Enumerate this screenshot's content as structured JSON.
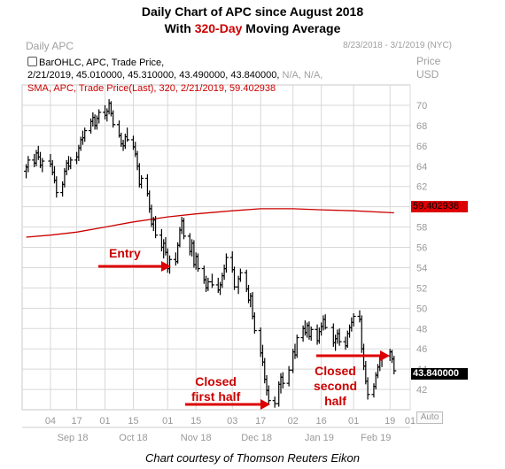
{
  "header": {
    "title": "Daily Chart of APC since August 2018",
    "subtitle_prefix": "With ",
    "subtitle_highlight": "320-Day",
    "subtitle_suffix": " Moving Average",
    "highlight_color": "#cc0000"
  },
  "chart_header": {
    "left": "Daily APC",
    "date_range": "8/23/2018 - 3/1/2019 (NYC)",
    "axis_title_1": "Price",
    "axis_title_2": "USD"
  },
  "info": {
    "line1": "BarOHLC, APC, Trade Price,",
    "line2_main": "2/21/2019, 45.010000, 45.310000, 43.490000, 43.840000, ",
    "line2_muted": "N/A, N/A,",
    "line3": "SMA, APC, Trade Price(Last),  320,  2/21/2019,  59.402938"
  },
  "price_tag": "43.840000",
  "sma_tag": "59.402938",
  "auto_label": "Auto",
  "credit": "Chart courtesy of Thomson Reuters Eikon",
  "annotations": {
    "entry": "Entry",
    "closed_first": [
      "Closed",
      "first half"
    ],
    "closed_second": [
      "Closed",
      "second",
      "half"
    ]
  },
  "colors": {
    "bars": "#000000",
    "sma": "#cc0000",
    "grid": "#d8d8d8",
    "arrow": "#dd0000",
    "tag_bg": "#000000",
    "sma_tag_bg": "#dd0000"
  },
  "chart_data": {
    "type": "bar",
    "title": "Daily Chart of APC since August 2018",
    "subtitle": "With 320-Day Moving Average",
    "ylabel": "Price USD",
    "ylim": [
      40,
      72
    ],
    "y_ticks": [
      42,
      44,
      46,
      48,
      50,
      52,
      54,
      56,
      58,
      60,
      62,
      64,
      66,
      68,
      70
    ],
    "grid": true,
    "x_day_ticks": [
      "04",
      "17",
      "01",
      "15",
      "01",
      "15",
      "03",
      "17",
      "02",
      "16",
      "01",
      "19",
      "01"
    ],
    "x_month_ticks": [
      "Sep 18",
      "Oct 18",
      "Nov 18",
      "Dec 18",
      "Jan 19",
      "Feb 19"
    ],
    "bars_ohlc": [
      {
        "date": "2018-08-23",
        "o": 63.5,
        "h": 64.2,
        "l": 62.8,
        "c": 63.9
      },
      {
        "date": "2018-08-24",
        "o": 63.9,
        "h": 65.0,
        "l": 63.4,
        "c": 64.6
      },
      {
        "date": "2018-08-27",
        "o": 64.6,
        "h": 65.2,
        "l": 63.9,
        "c": 64.3
      },
      {
        "date": "2018-08-28",
        "o": 64.3,
        "h": 65.6,
        "l": 64.0,
        "c": 65.3
      },
      {
        "date": "2018-08-29",
        "o": 65.3,
        "h": 66.0,
        "l": 64.6,
        "c": 64.9
      },
      {
        "date": "2018-08-30",
        "o": 64.9,
        "h": 65.4,
        "l": 63.8,
        "c": 64.1
      },
      {
        "date": "2018-08-31",
        "o": 64.1,
        "h": 64.8,
        "l": 63.4,
        "c": 64.5
      },
      {
        "date": "2018-09-04",
        "o": 64.5,
        "h": 65.2,
        "l": 63.9,
        "c": 64.2
      },
      {
        "date": "2018-09-05",
        "o": 64.2,
        "h": 64.6,
        "l": 63.1,
        "c": 63.4
      },
      {
        "date": "2018-09-06",
        "o": 63.4,
        "h": 64.0,
        "l": 62.3,
        "c": 62.6
      },
      {
        "date": "2018-09-07",
        "o": 62.6,
        "h": 63.0,
        "l": 60.9,
        "c": 61.4
      },
      {
        "date": "2018-09-10",
        "o": 61.4,
        "h": 62.5,
        "l": 61.0,
        "c": 62.2
      },
      {
        "date": "2018-09-11",
        "o": 62.2,
        "h": 63.8,
        "l": 61.9,
        "c": 63.5
      },
      {
        "date": "2018-09-12",
        "o": 63.5,
        "h": 64.6,
        "l": 63.1,
        "c": 64.3
      },
      {
        "date": "2018-09-13",
        "o": 64.3,
        "h": 65.0,
        "l": 63.6,
        "c": 64.0
      },
      {
        "date": "2018-09-14",
        "o": 64.0,
        "h": 64.9,
        "l": 63.7,
        "c": 64.6
      },
      {
        "date": "2018-09-17",
        "o": 64.6,
        "h": 65.4,
        "l": 64.2,
        "c": 64.9
      },
      {
        "date": "2018-09-18",
        "o": 64.9,
        "h": 66.1,
        "l": 64.5,
        "c": 65.8
      },
      {
        "date": "2018-09-19",
        "o": 65.8,
        "h": 66.9,
        "l": 65.5,
        "c": 66.6
      },
      {
        "date": "2018-09-20",
        "o": 66.6,
        "h": 67.5,
        "l": 66.1,
        "c": 66.8
      },
      {
        "date": "2018-09-21",
        "o": 66.8,
        "h": 67.8,
        "l": 66.4,
        "c": 67.5
      },
      {
        "date": "2018-09-24",
        "o": 67.5,
        "h": 68.7,
        "l": 67.2,
        "c": 68.4
      },
      {
        "date": "2018-09-25",
        "o": 68.4,
        "h": 69.3,
        "l": 67.9,
        "c": 68.8
      },
      {
        "date": "2018-09-26",
        "o": 68.8,
        "h": 69.1,
        "l": 67.6,
        "c": 68.0
      },
      {
        "date": "2018-09-27",
        "o": 68.0,
        "h": 69.0,
        "l": 67.6,
        "c": 68.7
      },
      {
        "date": "2018-09-28",
        "o": 68.7,
        "h": 69.6,
        "l": 68.2,
        "c": 69.3
      },
      {
        "date": "2018-10-01",
        "o": 69.3,
        "h": 70.0,
        "l": 68.6,
        "c": 69.0
      },
      {
        "date": "2018-10-02",
        "o": 69.0,
        "h": 69.7,
        "l": 68.4,
        "c": 69.4
      },
      {
        "date": "2018-10-03",
        "o": 69.4,
        "h": 70.6,
        "l": 69.1,
        "c": 70.2
      },
      {
        "date": "2018-10-04",
        "o": 70.2,
        "h": 70.4,
        "l": 68.9,
        "c": 69.2
      },
      {
        "date": "2018-10-05",
        "o": 69.2,
        "h": 69.5,
        "l": 67.8,
        "c": 68.1
      },
      {
        "date": "2018-10-08",
        "o": 68.1,
        "h": 68.5,
        "l": 66.8,
        "c": 67.0
      },
      {
        "date": "2018-10-09",
        "o": 67.0,
        "h": 67.3,
        "l": 65.9,
        "c": 66.2
      },
      {
        "date": "2018-10-10",
        "o": 66.2,
        "h": 66.6,
        "l": 65.5,
        "c": 66.0
      },
      {
        "date": "2018-10-11",
        "o": 66.0,
        "h": 67.2,
        "l": 65.7,
        "c": 66.9
      },
      {
        "date": "2018-10-12",
        "o": 66.9,
        "h": 67.8,
        "l": 66.4,
        "c": 66.6
      },
      {
        "date": "2018-10-15",
        "o": 66.6,
        "h": 67.0,
        "l": 65.6,
        "c": 65.9
      },
      {
        "date": "2018-10-16",
        "o": 65.9,
        "h": 66.4,
        "l": 64.9,
        "c": 65.2
      },
      {
        "date": "2018-10-17",
        "o": 65.2,
        "h": 65.5,
        "l": 63.6,
        "c": 64.0
      },
      {
        "date": "2018-10-18",
        "o": 64.0,
        "h": 64.3,
        "l": 61.9,
        "c": 62.2
      },
      {
        "date": "2018-10-19",
        "o": 62.2,
        "h": 63.1,
        "l": 61.8,
        "c": 62.8
      },
      {
        "date": "2018-10-22",
        "o": 62.8,
        "h": 63.2,
        "l": 61.0,
        "c": 61.3
      },
      {
        "date": "2018-10-23",
        "o": 61.3,
        "h": 61.6,
        "l": 59.4,
        "c": 59.8
      },
      {
        "date": "2018-10-24",
        "o": 59.8,
        "h": 60.2,
        "l": 58.0,
        "c": 58.3
      },
      {
        "date": "2018-10-25",
        "o": 58.3,
        "h": 59.0,
        "l": 57.6,
        "c": 58.7
      },
      {
        "date": "2018-10-26",
        "o": 58.7,
        "h": 59.1,
        "l": 56.9,
        "c": 57.2
      },
      {
        "date": "2018-10-29",
        "o": 57.2,
        "h": 57.8,
        "l": 55.6,
        "c": 56.0
      },
      {
        "date": "2018-10-30",
        "o": 56.0,
        "h": 56.8,
        "l": 54.9,
        "c": 56.4
      },
      {
        "date": "2018-10-31",
        "o": 56.4,
        "h": 57.0,
        "l": 55.2,
        "c": 55.5
      },
      {
        "date": "2018-11-01",
        "o": 55.5,
        "h": 55.9,
        "l": 53.5,
        "c": 53.9
      },
      {
        "date": "2018-11-02",
        "o": 53.9,
        "h": 55.2,
        "l": 53.4,
        "c": 54.8
      },
      {
        "date": "2018-11-05",
        "o": 54.8,
        "h": 55.5,
        "l": 54.2,
        "c": 54.6
      },
      {
        "date": "2018-11-06",
        "o": 54.6,
        "h": 56.5,
        "l": 54.4,
        "c": 56.2
      },
      {
        "date": "2018-11-07",
        "o": 56.2,
        "h": 58.0,
        "l": 56.0,
        "c": 57.7
      },
      {
        "date": "2018-11-08",
        "o": 57.7,
        "h": 59.0,
        "l": 57.3,
        "c": 58.6
      },
      {
        "date": "2018-11-09",
        "o": 58.6,
        "h": 58.9,
        "l": 56.8,
        "c": 57.1
      },
      {
        "date": "2018-11-12",
        "o": 57.1,
        "h": 57.4,
        "l": 55.2,
        "c": 55.6
      },
      {
        "date": "2018-11-13",
        "o": 55.6,
        "h": 56.8,
        "l": 55.1,
        "c": 56.4
      },
      {
        "date": "2018-11-14",
        "o": 56.4,
        "h": 56.7,
        "l": 54.0,
        "c": 54.3
      },
      {
        "date": "2018-11-15",
        "o": 54.3,
        "h": 55.5,
        "l": 53.8,
        "c": 55.1
      },
      {
        "date": "2018-11-16",
        "o": 55.1,
        "h": 55.4,
        "l": 53.6,
        "c": 53.9
      },
      {
        "date": "2018-11-19",
        "o": 53.9,
        "h": 54.2,
        "l": 52.4,
        "c": 52.8
      },
      {
        "date": "2018-11-20",
        "o": 52.8,
        "h": 53.2,
        "l": 51.6,
        "c": 52.0
      },
      {
        "date": "2018-11-21",
        "o": 52.0,
        "h": 53.0,
        "l": 51.7,
        "c": 52.6
      },
      {
        "date": "2018-11-23",
        "o": 52.6,
        "h": 53.4,
        "l": 52.0,
        "c": 52.3
      },
      {
        "date": "2018-11-26",
        "o": 52.3,
        "h": 53.0,
        "l": 51.5,
        "c": 51.8
      },
      {
        "date": "2018-11-27",
        "o": 51.8,
        "h": 52.6,
        "l": 51.3,
        "c": 52.3
      },
      {
        "date": "2018-11-28",
        "o": 52.3,
        "h": 53.5,
        "l": 52.0,
        "c": 53.2
      },
      {
        "date": "2018-11-29",
        "o": 53.2,
        "h": 54.3,
        "l": 52.8,
        "c": 53.9
      },
      {
        "date": "2018-11-30",
        "o": 53.9,
        "h": 55.4,
        "l": 53.5,
        "c": 55.0
      },
      {
        "date": "2018-12-03",
        "o": 55.0,
        "h": 55.6,
        "l": 53.5,
        "c": 53.8
      },
      {
        "date": "2018-12-04",
        "o": 53.8,
        "h": 54.1,
        "l": 51.8,
        "c": 52.1
      },
      {
        "date": "2018-12-06",
        "o": 52.1,
        "h": 53.2,
        "l": 51.4,
        "c": 52.9
      },
      {
        "date": "2018-12-07",
        "o": 52.9,
        "h": 53.9,
        "l": 52.6,
        "c": 53.5
      },
      {
        "date": "2018-12-10",
        "o": 53.5,
        "h": 53.8,
        "l": 51.6,
        "c": 51.9
      },
      {
        "date": "2018-12-11",
        "o": 51.9,
        "h": 52.3,
        "l": 50.5,
        "c": 50.8
      },
      {
        "date": "2018-12-12",
        "o": 50.8,
        "h": 51.5,
        "l": 50.1,
        "c": 51.2
      },
      {
        "date": "2018-12-13",
        "o": 51.2,
        "h": 51.6,
        "l": 48.9,
        "c": 49.2
      },
      {
        "date": "2018-12-14",
        "o": 49.2,
        "h": 49.6,
        "l": 47.5,
        "c": 47.8
      },
      {
        "date": "2018-12-17",
        "o": 47.8,
        "h": 48.1,
        "l": 45.2,
        "c": 45.6
      },
      {
        "date": "2018-12-18",
        "o": 45.6,
        "h": 46.4,
        "l": 44.3,
        "c": 44.7
      },
      {
        "date": "2018-12-19",
        "o": 44.7,
        "h": 45.1,
        "l": 42.6,
        "c": 43.0
      },
      {
        "date": "2018-12-20",
        "o": 43.0,
        "h": 43.4,
        "l": 41.4,
        "c": 41.9
      },
      {
        "date": "2018-12-21",
        "o": 41.9,
        "h": 42.4,
        "l": 40.5,
        "c": 40.9
      },
      {
        "date": "2018-12-24",
        "o": 40.9,
        "h": 41.3,
        "l": 40.2,
        "c": 40.6
      },
      {
        "date": "2018-12-26",
        "o": 40.6,
        "h": 42.8,
        "l": 40.3,
        "c": 42.5
      },
      {
        "date": "2018-12-27",
        "o": 42.5,
        "h": 43.6,
        "l": 41.6,
        "c": 43.2
      },
      {
        "date": "2018-12-28",
        "o": 43.2,
        "h": 43.7,
        "l": 42.1,
        "c": 42.6
      },
      {
        "date": "2018-12-31",
        "o": 42.6,
        "h": 44.3,
        "l": 42.3,
        "c": 43.9
      },
      {
        "date": "2019-01-02",
        "o": 43.9,
        "h": 46.0,
        "l": 43.6,
        "c": 45.7
      },
      {
        "date": "2019-01-03",
        "o": 45.7,
        "h": 46.5,
        "l": 45.0,
        "c": 45.4
      },
      {
        "date": "2019-01-04",
        "o": 45.4,
        "h": 47.4,
        "l": 45.1,
        "c": 47.1
      },
      {
        "date": "2019-01-07",
        "o": 47.1,
        "h": 48.3,
        "l": 46.7,
        "c": 48.0
      },
      {
        "date": "2019-01-08",
        "o": 48.0,
        "h": 48.8,
        "l": 47.3,
        "c": 47.6
      },
      {
        "date": "2019-01-09",
        "o": 47.6,
        "h": 48.6,
        "l": 47.1,
        "c": 48.3
      },
      {
        "date": "2019-01-10",
        "o": 48.3,
        "h": 48.7,
        "l": 46.9,
        "c": 47.2
      },
      {
        "date": "2019-01-11",
        "o": 47.2,
        "h": 48.2,
        "l": 46.8,
        "c": 47.9
      },
      {
        "date": "2019-01-14",
        "o": 47.9,
        "h": 48.4,
        "l": 46.4,
        "c": 46.8
      },
      {
        "date": "2019-01-15",
        "o": 46.8,
        "h": 48.1,
        "l": 46.5,
        "c": 47.7
      },
      {
        "date": "2019-01-16",
        "o": 47.7,
        "h": 48.6,
        "l": 47.3,
        "c": 48.2
      },
      {
        "date": "2019-01-17",
        "o": 48.2,
        "h": 49.3,
        "l": 47.8,
        "c": 48.9
      },
      {
        "date": "2019-01-18",
        "o": 48.9,
        "h": 49.4,
        "l": 47.9,
        "c": 48.1
      },
      {
        "date": "2019-01-22",
        "o": 48.1,
        "h": 48.5,
        "l": 46.2,
        "c": 46.6
      },
      {
        "date": "2019-01-23",
        "o": 46.6,
        "h": 47.4,
        "l": 45.8,
        "c": 47.0
      },
      {
        "date": "2019-01-24",
        "o": 47.0,
        "h": 47.9,
        "l": 46.5,
        "c": 47.5
      },
      {
        "date": "2019-01-25",
        "o": 47.5,
        "h": 48.0,
        "l": 46.3,
        "c": 46.7
      },
      {
        "date": "2019-01-28",
        "o": 46.7,
        "h": 47.2,
        "l": 45.9,
        "c": 46.3
      },
      {
        "date": "2019-01-29",
        "o": 46.3,
        "h": 47.8,
        "l": 46.1,
        "c": 47.5
      },
      {
        "date": "2019-01-30",
        "o": 47.5,
        "h": 48.4,
        "l": 47.1,
        "c": 48.1
      },
      {
        "date": "2019-01-31",
        "o": 48.1,
        "h": 49.1,
        "l": 47.7,
        "c": 48.6
      },
      {
        "date": "2019-02-01",
        "o": 48.6,
        "h": 49.5,
        "l": 48.2,
        "c": 49.2
      },
      {
        "date": "2019-02-04",
        "o": 49.2,
        "h": 49.8,
        "l": 48.6,
        "c": 48.9
      },
      {
        "date": "2019-02-05",
        "o": 48.9,
        "h": 49.3,
        "l": 45.6,
        "c": 46.0
      },
      {
        "date": "2019-02-06",
        "o": 46.0,
        "h": 46.5,
        "l": 43.9,
        "c": 44.3
      },
      {
        "date": "2019-02-07",
        "o": 44.3,
        "h": 44.8,
        "l": 42.5,
        "c": 42.8
      },
      {
        "date": "2019-02-08",
        "o": 42.8,
        "h": 43.2,
        "l": 41.0,
        "c": 41.5
      },
      {
        "date": "2019-02-11",
        "o": 41.5,
        "h": 42.6,
        "l": 41.2,
        "c": 42.3
      },
      {
        "date": "2019-02-12",
        "o": 42.3,
        "h": 43.7,
        "l": 42.0,
        "c": 43.4
      },
      {
        "date": "2019-02-13",
        "o": 43.4,
        "h": 44.5,
        "l": 43.1,
        "c": 44.2
      },
      {
        "date": "2019-02-14",
        "o": 44.2,
        "h": 45.2,
        "l": 43.8,
        "c": 44.9
      },
      {
        "date": "2019-02-15",
        "o": 44.9,
        "h": 45.6,
        "l": 44.2,
        "c": 45.3
      },
      {
        "date": "2019-02-19",
        "o": 45.3,
        "h": 46.0,
        "l": 44.8,
        "c": 45.7
      },
      {
        "date": "2019-02-20",
        "o": 45.7,
        "h": 45.9,
        "l": 44.6,
        "c": 45.0
      },
      {
        "date": "2019-02-21",
        "o": 45.01,
        "h": 45.31,
        "l": 43.49,
        "c": 43.84
      }
    ],
    "sma_320": [
      {
        "date": "2018-08-23",
        "v": 57.0
      },
      {
        "date": "2018-09-04",
        "v": 57.2
      },
      {
        "date": "2018-09-17",
        "v": 57.5
      },
      {
        "date": "2018-10-01",
        "v": 58.0
      },
      {
        "date": "2018-10-15",
        "v": 58.5
      },
      {
        "date": "2018-11-01",
        "v": 59.0
      },
      {
        "date": "2018-11-15",
        "v": 59.3
      },
      {
        "date": "2018-12-03",
        "v": 59.6
      },
      {
        "date": "2018-12-17",
        "v": 59.8
      },
      {
        "date": "2019-01-02",
        "v": 59.8
      },
      {
        "date": "2019-01-16",
        "v": 59.7
      },
      {
        "date": "2019-02-01",
        "v": 59.6
      },
      {
        "date": "2019-02-21",
        "v": 59.402938
      }
    ],
    "last_price": 43.84,
    "sma_last": 59.402938
  }
}
